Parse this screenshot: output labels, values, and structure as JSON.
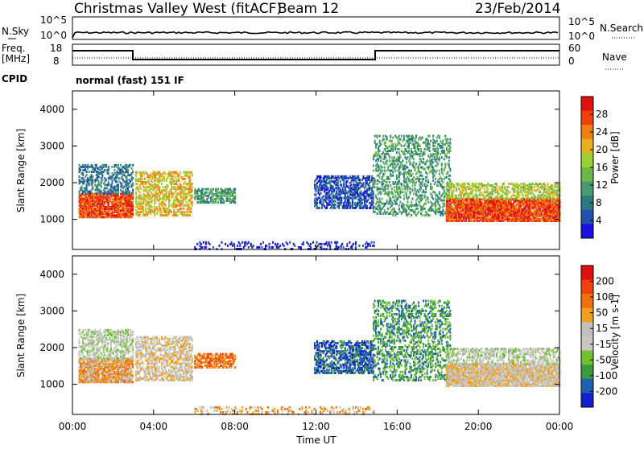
{
  "header": {
    "station": "Christmas Valley West (fitACF)",
    "beam": "Beam 12",
    "date": "23/Feb/2014"
  },
  "top_panels": {
    "nsky_label": "N.Sky",
    "nsearch_label": "N.Search",
    "noise_tick_hi": "10^5",
    "noise_tick_lo": "10^0",
    "freq_label_line1": "Freq.",
    "freq_label_line2": "[MHz]",
    "freq_tick_hi": "18",
    "freq_tick_lo": "8",
    "nave_label": "Nave",
    "nave_tick_hi": "60",
    "nave_tick_lo": "0",
    "cpid_label": "CPID",
    "cpid_value": "normal (fast) 151 IF"
  },
  "colors": {
    "power_scale": [
      "#1a10e0",
      "#2050b0",
      "#2a7a80",
      "#4a9a70",
      "#6ab84a",
      "#9ad034",
      "#e8b020",
      "#f08010",
      "#f04010",
      "#e01010"
    ],
    "velocity_scale": [
      "#1020d0",
      "#2060b0",
      "#3a9a40",
      "#70c030",
      "#c8c8c0",
      "#c0c0c0",
      "#f0a020",
      "#f07010",
      "#f04010",
      "#e01010"
    ]
  },
  "chart_data": [
    {
      "type": "heatmap",
      "title": "",
      "xlabel": "",
      "ylabel": "Slant Range [km]",
      "xlim": [
        0,
        24
      ],
      "ylim": [
        180,
        4500
      ],
      "colorbar_label": "Power [dB]",
      "colorbar_ticks": [
        "28",
        "24",
        "20",
        "16",
        "12",
        "8",
        "4"
      ],
      "colorbar_range": [
        0,
        32
      ]
    },
    {
      "type": "heatmap",
      "title": "",
      "xlabel": "Time UT",
      "ylabel": "Slant Range [km]",
      "xlim": [
        0,
        24
      ],
      "ylim": [
        180,
        4500
      ],
      "colorbar_label": "Velocity [m s-1]",
      "colorbar_ticks": [
        "200",
        "100",
        "50",
        "15",
        "-15",
        "-50",
        "-100",
        "-200"
      ]
    }
  ],
  "axes": {
    "y_ticks": [
      "4000",
      "3000",
      "2000",
      "1000"
    ],
    "x_ticks": [
      "00:00",
      "04:00",
      "08:00",
      "12:00",
      "16:00",
      "20:00",
      "00:00"
    ]
  }
}
